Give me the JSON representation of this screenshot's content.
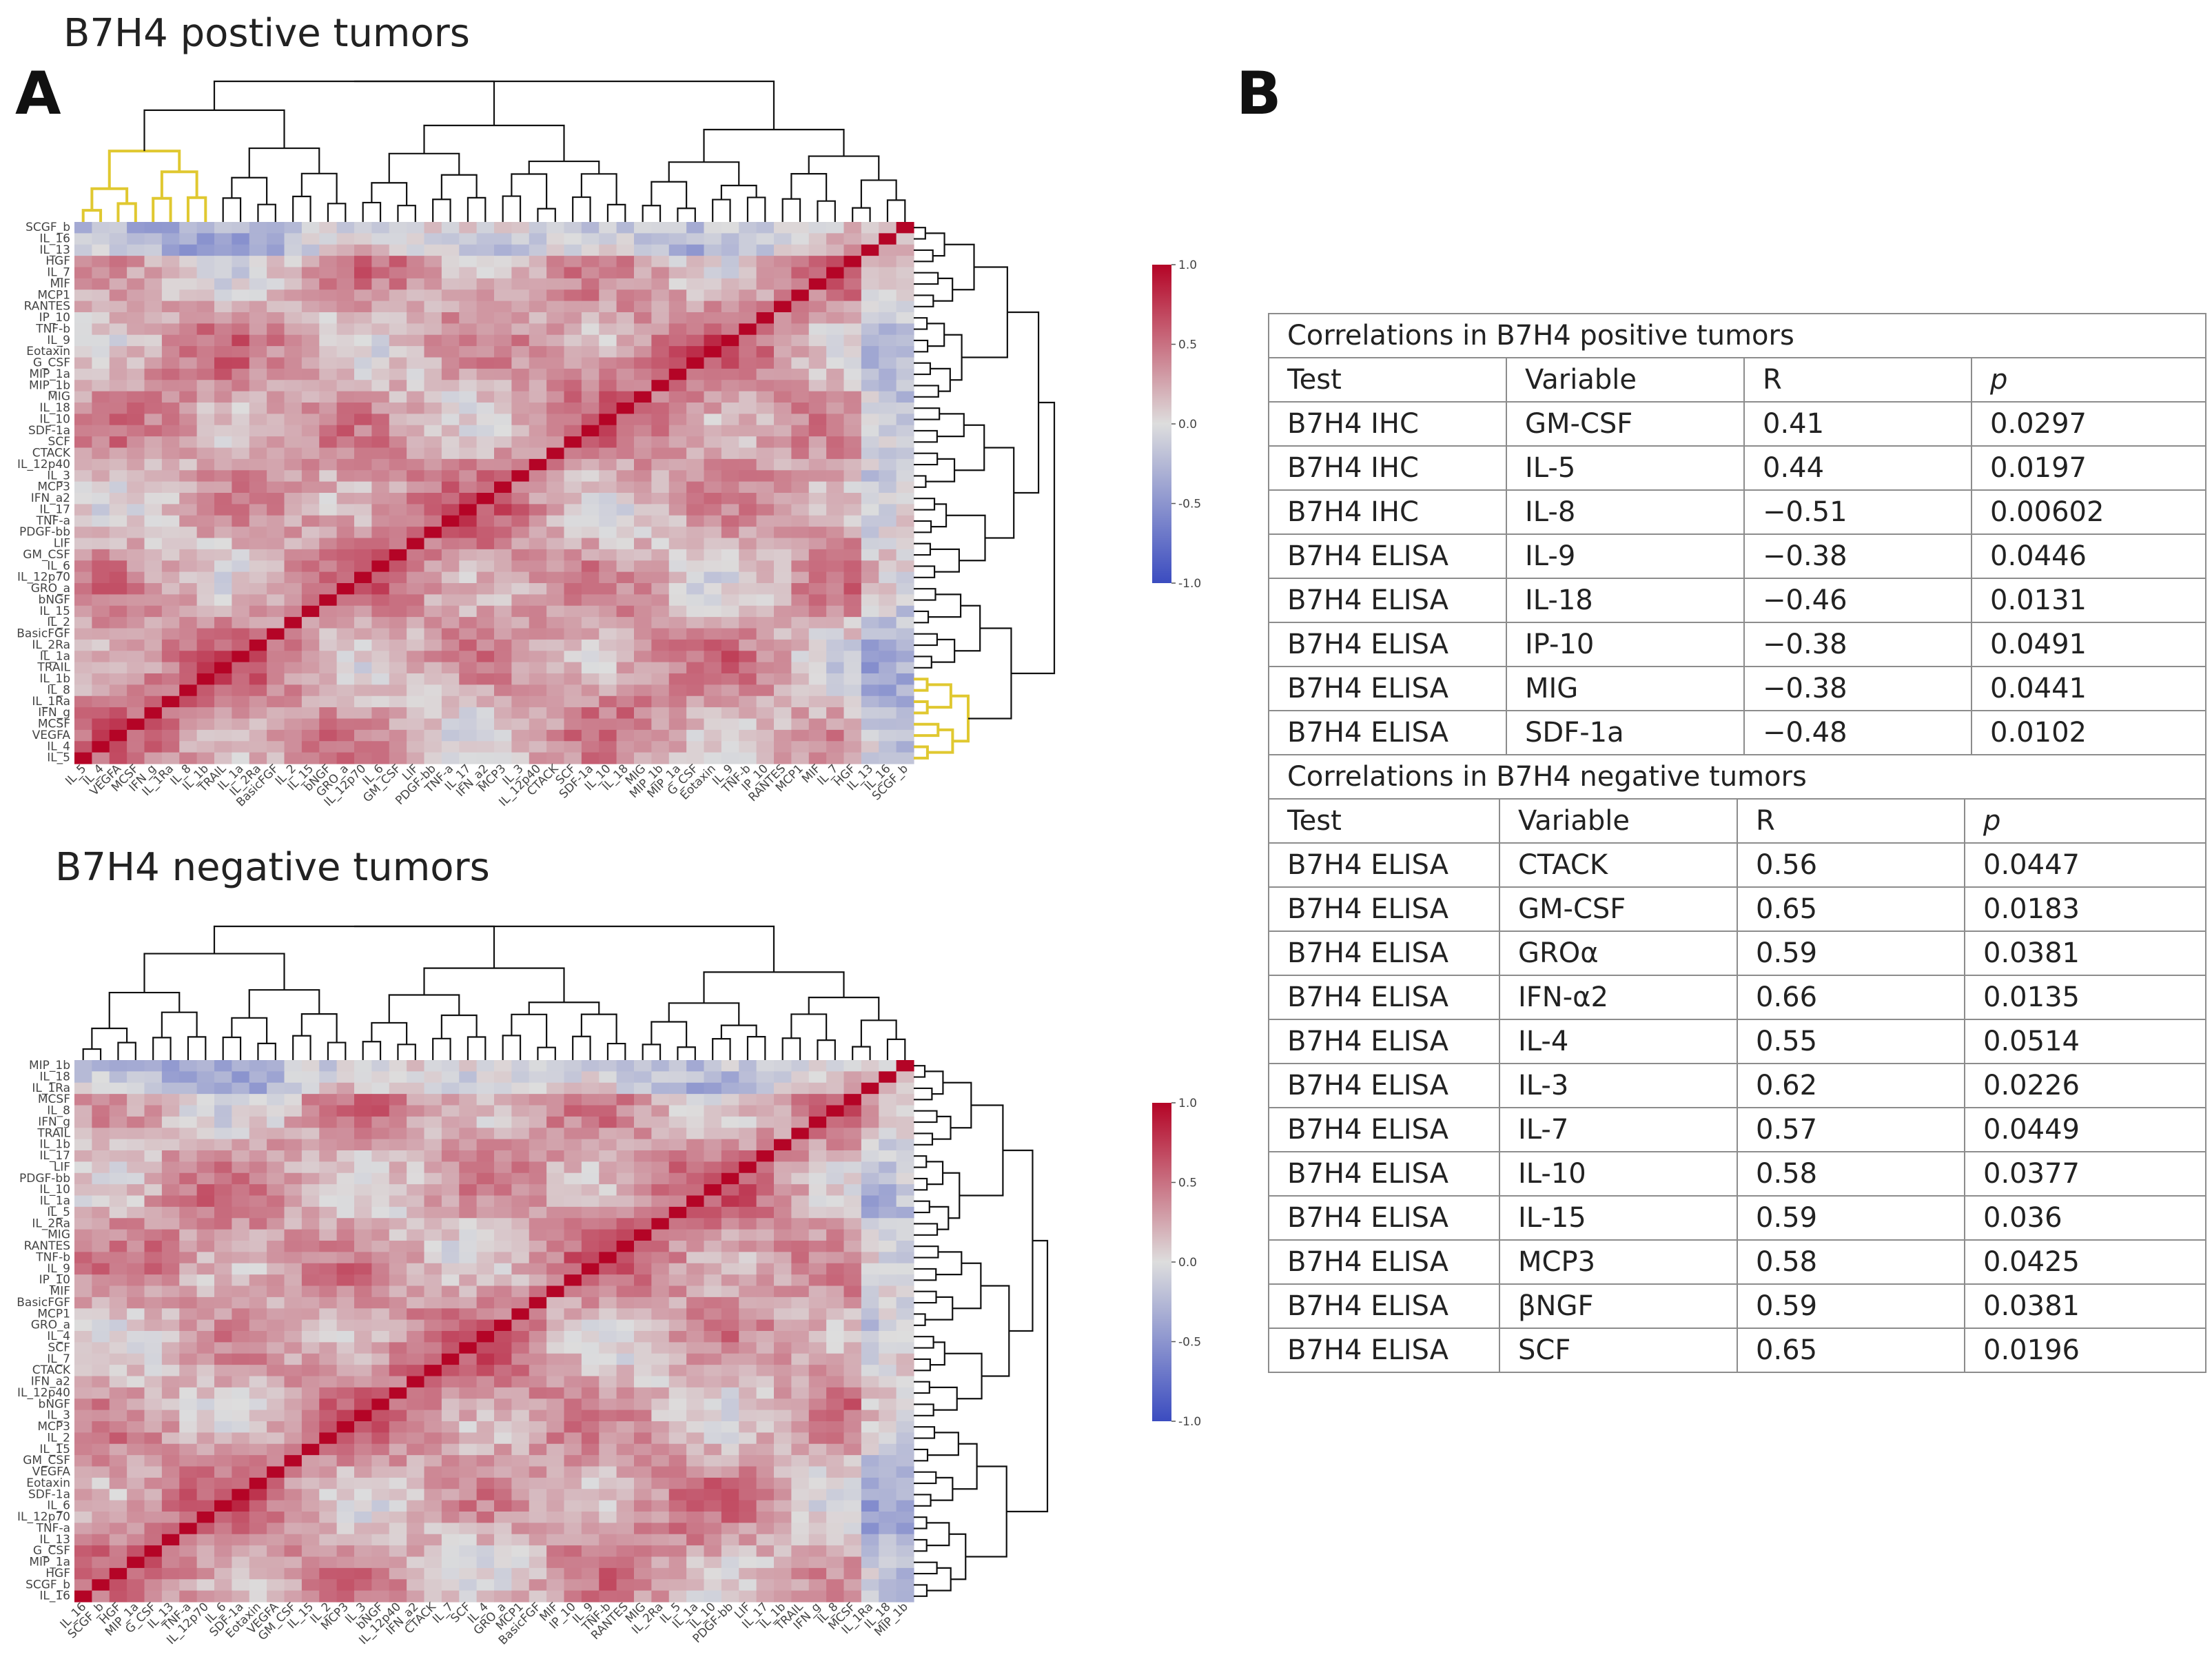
{
  "panels": {
    "a_letter": "A",
    "b_letter": "B",
    "positive_title": "B7H4 postive tumors",
    "negative_title": "B7H4 negative tumors"
  },
  "chart_data": [
    {
      "type": "heatmap",
      "title": "B7H4 postive tumors",
      "colorbar": {
        "ticks": [
          "1.0",
          "0.5",
          "0.0",
          "-0.5",
          "-1.0"
        ],
        "range": [
          -1.0,
          1.0
        ],
        "colors": {
          "high": "#b40426",
          "mid": "#dddddd",
          "low": "#3b4cc0"
        }
      },
      "cluster_highlight_color": "#e0c830",
      "row_labels": [
        "SCGF_b",
        "IL_16",
        "IL_13",
        "HGF",
        "IL_7",
        "MIF",
        "MCP1",
        "RANTES",
        "IP_10",
        "TNF-b",
        "IL_9",
        "Eotaxin",
        "G_CSF",
        "MIP_1a",
        "MIP_1b",
        "MIG",
        "IL_18",
        "IL_10",
        "SDF-1a",
        "SCF",
        "CTACK",
        "IL_12p40",
        "IL_3",
        "MCP3",
        "IFN_a2",
        "IL_17",
        "TNF-a",
        "PDGF-bb",
        "LIF",
        "GM_CSF",
        "IL_6",
        "IL_12p70",
        "GRO_a",
        "bNGF",
        "IL_15",
        "IL_2",
        "BasicFGF",
        "IL_2Ra",
        "IL_1a",
        "TRAIL",
        "IL_1b",
        "IL_8",
        "IL_1Ra",
        "IFN_g",
        "MCSF",
        "VEGFA",
        "IL_4",
        "IL_5"
      ],
      "col_labels": [
        "IL_5",
        "IL_4",
        "VEGFA",
        "MCSF",
        "IFN_g",
        "IL_1Ra",
        "IL_8",
        "IL_1b",
        "TRAIL",
        "IL_1a",
        "IL_2Ra",
        "BasicFGF",
        "IL_2",
        "IL_15",
        "bNGF",
        "GRO_a",
        "IL_12p70",
        "IL_6",
        "GM_CSF",
        "LIF",
        "PDGF-bb",
        "TNF-a",
        "IL_17",
        "IFN_a2",
        "MCP3",
        "IL_3",
        "IL_12p40",
        "CTACK",
        "SCF",
        "SDF-1a",
        "IL_10",
        "IL_18",
        "MIG",
        "MIP_1b",
        "MIP_1a",
        "G_CSF",
        "Eotaxin",
        "IL_9",
        "TNF-b",
        "IP_10",
        "RANTES",
        "MCP1",
        "MIF",
        "IL_7",
        "HGF",
        "IL_13",
        "IL_16",
        "SCGF_b"
      ]
    },
    {
      "type": "heatmap",
      "title": "B7H4 negative tumors",
      "colorbar": {
        "ticks": [
          "1.0",
          "0.5",
          "0.0",
          "-0.5",
          "-1.0"
        ],
        "range": [
          -1.0,
          1.0
        ],
        "colors": {
          "high": "#b40426",
          "mid": "#dddddd",
          "low": "#3b4cc0"
        }
      },
      "row_labels": [
        "MIP_1b",
        "IL_18",
        "IL_1Ra",
        "MCSF",
        "IL_8",
        "IFN_g",
        "TRAIL",
        "IL_1b",
        "IL_17",
        "LIF",
        "PDGF-bb",
        "IL_10",
        "IL_1a",
        "IL_5",
        "IL_2Ra",
        "MIG",
        "RANTES",
        "TNF-b",
        "IL_9",
        "IP_10",
        "MIF",
        "BasicFGF",
        "MCP1",
        "GRO_a",
        "IL_4",
        "SCF",
        "IL_7",
        "CTACK",
        "IFN_a2",
        "IL_12p40",
        "bNGF",
        "IL_3",
        "MCP3",
        "IL_2",
        "IL_15",
        "GM_CSF",
        "VEGFA",
        "Eotaxin",
        "SDF-1a",
        "IL_6",
        "IL_12p70",
        "TNF-a",
        "IL_13",
        "G_CSF",
        "MIP_1a",
        "HGF",
        "SCGF_b",
        "IL_16"
      ],
      "col_labels": [
        "IL_16",
        "SCGF_b",
        "HGF",
        "MIP_1a",
        "G_CSF",
        "IL_13",
        "TNF-a",
        "IL_12p70",
        "IL_6",
        "SDF-1a",
        "Eotaxin",
        "VEGFA",
        "GM_CSF",
        "IL_15",
        "IL_2",
        "MCP3",
        "IL_3",
        "bNGF",
        "IL_12p40",
        "IFN_a2",
        "CTACK",
        "IL_7",
        "SCF",
        "IL_4",
        "GRO_a",
        "MCP1",
        "BasicFGF",
        "MIF",
        "IP_10",
        "IL_9",
        "TNF-b",
        "RANTES",
        "MIG",
        "IL_2Ra",
        "IL_5",
        "IL_1a",
        "IL_10",
        "PDGF-bb",
        "LIF",
        "IL_17",
        "IL_1b",
        "TRAIL",
        "IFN_g",
        "IL_8",
        "MCSF",
        "IL_1Ra",
        "IL_18",
        "MIP_1b"
      ]
    },
    {
      "type": "table",
      "title": "Correlations in B7H4 positive tumors",
      "columns": [
        "Test",
        "Variable",
        "R",
        "p"
      ],
      "rows": [
        [
          "B7H4  IHC",
          "GM-CSF",
          "0.41",
          "0.0297"
        ],
        [
          "B7H4  IHC",
          "IL-5",
          "0.44",
          "0.0197"
        ],
        [
          "B7H4  IHC",
          "IL-8",
          "−0.51",
          "0.00602"
        ],
        [
          "B7H4 ELISA",
          "IL-9",
          "−0.38",
          "0.0446"
        ],
        [
          "B7H4 ELISA",
          "IL-18",
          "−0.46",
          "0.0131"
        ],
        [
          "B7H4 ELISA",
          "IP-10",
          "−0.38",
          "0.0491"
        ],
        [
          "B7H4 ELISA",
          "MIG",
          "−0.38",
          "0.0441"
        ],
        [
          "B7H4 ELISA",
          "SDF-1a",
          "−0.48",
          "0.0102"
        ]
      ]
    },
    {
      "type": "table",
      "title": "Correlations in B7H4 negative tumors",
      "columns": [
        "Test",
        "Variable",
        "R",
        "p"
      ],
      "rows": [
        [
          "B7H4 ELISA",
          "CTACK",
          "0.56",
          "0.0447"
        ],
        [
          "B7H4 ELISA",
          "GM-CSF",
          "0.65",
          "0.0183"
        ],
        [
          "B7H4 ELISA",
          "GROα",
          "0.59",
          "0.0381"
        ],
        [
          "B7H4 ELISA",
          "IFN-α2",
          "0.66",
          "0.0135"
        ],
        [
          "B7H4 ELISA",
          "IL-4",
          "0.55",
          "0.0514"
        ],
        [
          "B7H4 ELISA",
          "IL-3",
          "0.62",
          "0.0226"
        ],
        [
          "B7H4 ELISA",
          "IL-7",
          "0.57",
          "0.0449"
        ],
        [
          "B7H4 ELISA",
          "IL-10",
          "0.58",
          "0.0377"
        ],
        [
          "B7H4 ELISA",
          "IL-15",
          "0.59",
          "0.036"
        ],
        [
          "B7H4 ELISA",
          "MCP3",
          "0.58",
          "0.0425"
        ],
        [
          "B7H4 ELISA",
          "βNGF",
          "0.59",
          "0.0381"
        ],
        [
          "B7H4 ELISA",
          "SCF",
          "0.65",
          "0.0196"
        ]
      ]
    }
  ]
}
